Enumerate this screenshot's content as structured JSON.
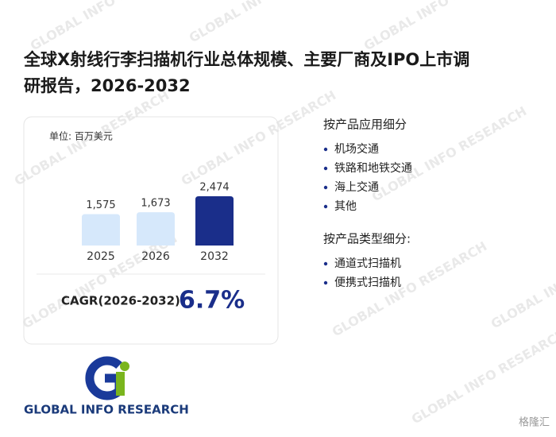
{
  "title_lines": [
    "全球X射线行李扫描机行业总体规模、主要厂商及IPO上市调",
    "研报告，2026-2032"
  ],
  "chart_data": {
    "type": "bar",
    "unit": "单位: 百万美元",
    "categories": [
      "2025",
      "2026",
      "2032"
    ],
    "values": [
      1575,
      1673,
      2474
    ],
    "value_labels": [
      "1,575",
      "1,673",
      "2,474"
    ],
    "colors": [
      "#d6e8fb",
      "#d6e8fb",
      "#1a2e8a"
    ]
  },
  "cagr": {
    "label": "CAGR(2026-2032):",
    "value": "6.7%"
  },
  "segments": [
    {
      "heading": "按产品应用细分",
      "items": [
        "机场交通",
        "铁路和地铁交通",
        "海上交通",
        "其他"
      ]
    },
    {
      "heading": "按产品类型细分:",
      "items": [
        "通道式扫描机",
        "便携式扫描机"
      ]
    }
  ],
  "logo_text": "GLOBAL INFO RESEARCH",
  "watermark": "GLOBAL INFO RESEARCH",
  "source": "格隆汇"
}
